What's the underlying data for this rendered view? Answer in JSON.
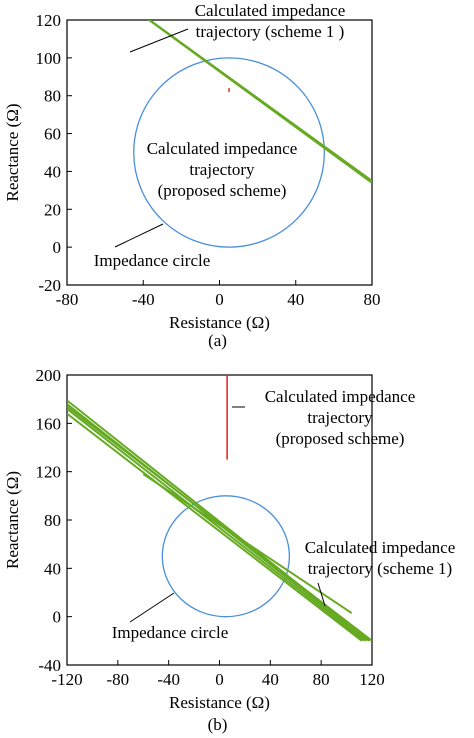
{
  "chart_data": [
    {
      "type": "scatter",
      "panel_label": "(a)",
      "xlabel": "Resistance (Ω)",
      "ylabel": "Reactance (Ω)",
      "xlim": [
        -80,
        80
      ],
      "ylim": [
        -20,
        120
      ],
      "xticks": [
        -80,
        -40,
        0,
        40,
        80
      ],
      "yticks": [
        -20,
        0,
        20,
        40,
        60,
        80,
        100,
        120
      ],
      "grid": false,
      "colors": {
        "scheme1": "#66aa22",
        "proposed": "#e0322a",
        "circle": "#4a8fd8"
      },
      "impedance_circle": {
        "center": [
          5,
          50
        ],
        "radius": 50
      },
      "scheme1_lines": [
        {
          "x": [
            -38,
            80
          ],
          "y": [
            121,
            35
          ]
        },
        {
          "x": [
            -37,
            80
          ],
          "y": [
            120,
            34
          ]
        }
      ],
      "proposed_line": {
        "x": [
          5,
          5
        ],
        "y": [
          82,
          84
        ]
      },
      "annotations": [
        {
          "lines": [
            "Calculated impedance",
            "trajectory (scheme 1 )"
          ],
          "target": [
            -20,
            108
          ]
        },
        {
          "lines": [
            "Calculated impedance",
            "trajectory",
            "(proposed scheme)"
          ],
          "target": [
            5,
            83
          ]
        },
        {
          "lines": [
            "Impedance circle"
          ],
          "target": [
            -25,
            10
          ]
        }
      ]
    },
    {
      "type": "scatter",
      "panel_label": "(b)",
      "xlabel": "Resistance (Ω)",
      "ylabel": "Reactance (Ω)",
      "xlim": [
        -120,
        120
      ],
      "ylim": [
        -40,
        200
      ],
      "xticks": [
        -120,
        -80,
        -40,
        0,
        40,
        80,
        120
      ],
      "yticks": [
        -40,
        0,
        40,
        80,
        120,
        160,
        200
      ],
      "grid": false,
      "colors": {
        "scheme1": "#66aa22",
        "proposed": "#e0322a",
        "circle": "#4a8fd8"
      },
      "impedance_circle": {
        "center": [
          5,
          50
        ],
        "radius": 50
      },
      "scheme1_lines": [
        {
          "x": [
            -120,
            118
          ],
          "y": [
            179,
            -20
          ]
        },
        {
          "x": [
            -120,
            116
          ],
          "y": [
            176,
            -20
          ]
        },
        {
          "x": [
            -120,
            114
          ],
          "y": [
            172,
            -20
          ]
        },
        {
          "x": [
            -120,
            112
          ],
          "y": [
            168,
            -20
          ]
        },
        {
          "x": [
            -120,
            120
          ],
          "y": [
            174,
            -20
          ]
        },
        {
          "x": [
            -60,
            104
          ],
          "y": [
            118,
            3
          ]
        }
      ],
      "proposed_line": {
        "x": [
          6,
          6
        ],
        "y": [
          130,
          200
        ]
      },
      "annotations": [
        {
          "lines": [
            "Calculated impedance",
            "trajectory",
            "(proposed scheme)"
          ],
          "target": [
            6,
            175
          ]
        },
        {
          "lines": [
            "Calculated impedance",
            "trajectory (scheme 1)"
          ],
          "target": [
            85,
            25
          ]
        },
        {
          "lines": [
            "Impedance circle"
          ],
          "target": [
            -25,
            20
          ]
        }
      ]
    }
  ]
}
